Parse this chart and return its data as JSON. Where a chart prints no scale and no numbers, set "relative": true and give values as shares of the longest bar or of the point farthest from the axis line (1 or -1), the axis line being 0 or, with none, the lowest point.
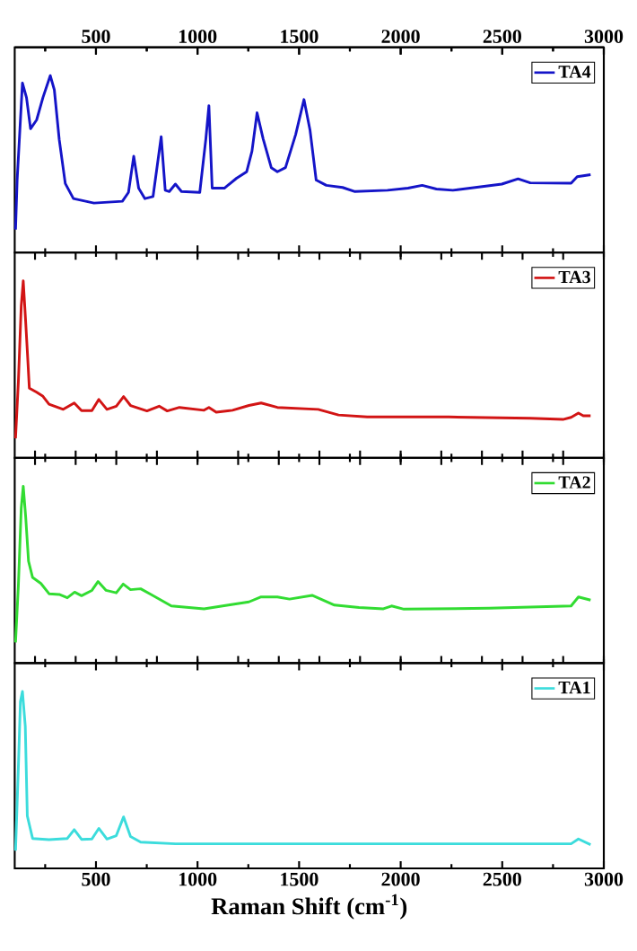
{
  "chart_data": [
    {
      "type": "line",
      "relative": true,
      "legend": "top right",
      "tick_labels": false,
      "xlim": [
        100,
        3000
      ],
      "xticks": [
        {
          "value": 250,
          "label": null
        },
        500,
        {
          "value": 750,
          "label": null
        },
        1000,
        {
          "value": 1250,
          "label": null
        },
        1500,
        {
          "value": 1750,
          "label": null
        },
        2000,
        {
          "value": 2250,
          "label": null
        },
        2500,
        {
          "value": 2750,
          "label": null
        },
        3000
      ],
      "x2lim": [
        100,
        3000
      ],
      "x2ticks": [
        {
          "value": 250,
          "label": null
        },
        500,
        {
          "value": 750,
          "label": null
        },
        1000,
        {
          "value": 1250,
          "label": null
        },
        1500,
        {
          "value": 1750,
          "label": null
        },
        2000,
        {
          "value": 2250,
          "label": null
        },
        2500,
        {
          "value": 2750,
          "label": null
        },
        3000
      ],
      "x": [
        104,
        112,
        138,
        158,
        178,
        208,
        239,
        275,
        295,
        319,
        349,
        389,
        490,
        630,
        660,
        686,
        710,
        741,
        781,
        821,
        841,
        861,
        891,
        921,
        1011,
        1041,
        1056,
        1072,
        1132,
        1192,
        1242,
        1268,
        1293,
        1323,
        1363,
        1393,
        1433,
        1483,
        1524,
        1554,
        1584,
        1634,
        1714,
        1775,
        1935,
        2036,
        2106,
        2176,
        2257,
        2498,
        2578,
        2638,
        2839,
        2869,
        2935
      ],
      "series": [
        {
          "name": "TA4",
          "color": "#1414c8",
          "values": [
            0.13,
            0.41,
            0.958,
            0.876,
            0.7,
            0.75,
            0.876,
            1.0,
            0.92,
            0.64,
            0.39,
            0.305,
            0.28,
            0.29,
            0.34,
            0.545,
            0.364,
            0.305,
            0.317,
            0.655,
            0.352,
            0.345,
            0.387,
            0.345,
            0.34,
            0.643,
            0.83,
            0.364,
            0.364,
            0.42,
            0.457,
            0.573,
            0.79,
            0.643,
            0.48,
            0.457,
            0.48,
            0.667,
            0.865,
            0.69,
            0.41,
            0.38,
            0.368,
            0.345,
            0.352,
            0.364,
            0.38,
            0.359,
            0.352,
            0.387,
            0.417,
            0.394,
            0.392,
            0.429,
            0.44
          ]
        }
      ]
    },
    {
      "type": "line",
      "relative": true,
      "legend": "top right",
      "tick_labels": false,
      "xlim": [
        100,
        3000
      ],
      "xticks": [
        {
          "value": 250,
          "label": null
        },
        {
          "value": 500,
          "label": null
        },
        {
          "value": 750,
          "label": null
        },
        {
          "value": 1000,
          "label": null
        },
        {
          "value": 1250,
          "label": null
        },
        {
          "value": 1500,
          "label": null
        },
        {
          "value": 1750,
          "label": null
        },
        {
          "value": 2000,
          "label": null
        },
        {
          "value": 2250,
          "label": null
        },
        {
          "value": 2500,
          "label": null
        },
        {
          "value": 2750,
          "label": null
        },
        {
          "value": 3000,
          "label": null
        }
      ],
      "x": [
        104,
        118,
        132,
        142,
        154,
        164,
        172,
        208,
        239,
        269,
        339,
        393,
        429,
        480,
        514,
        554,
        600,
        636,
        670,
        751,
        811,
        851,
        911,
        1032,
        1056,
        1092,
        1172,
        1253,
        1313,
        1393,
        1594,
        1694,
        1835,
        2237,
        2638,
        2799,
        2839,
        2875,
        2899,
        2935
      ],
      "series": [
        {
          "name": "TA3",
          "color": "#d21414",
          "values": [
            0.11,
            0.43,
            0.857,
            1.0,
            0.767,
            0.563,
            0.394,
            0.371,
            0.348,
            0.303,
            0.274,
            0.31,
            0.267,
            0.267,
            0.33,
            0.274,
            0.292,
            0.346,
            0.296,
            0.265,
            0.292,
            0.265,
            0.285,
            0.269,
            0.285,
            0.258,
            0.269,
            0.296,
            0.31,
            0.285,
            0.274,
            0.242,
            0.231,
            0.231,
            0.224,
            0.217,
            0.229,
            0.253,
            0.238,
            0.238
          ]
        }
      ]
    },
    {
      "type": "line",
      "relative": true,
      "legend": "top right",
      "tick_labels": false,
      "xlim": [
        100,
        3000
      ],
      "xticks": [
        {
          "value": 250,
          "label": null
        },
        {
          "value": 500,
          "label": null
        },
        {
          "value": 750,
          "label": null
        },
        {
          "value": 1000,
          "label": null
        },
        {
          "value": 1250,
          "label": null
        },
        {
          "value": 1500,
          "label": null
        },
        {
          "value": 1750,
          "label": null
        },
        {
          "value": 2000,
          "label": null
        },
        {
          "value": 2250,
          "label": null
        },
        {
          "value": 2500,
          "label": null
        },
        {
          "value": 2750,
          "label": null
        },
        {
          "value": 3000,
          "label": null
        }
      ],
      "x": [
        104,
        118,
        132,
        142,
        154,
        168,
        188,
        229,
        269,
        319,
        359,
        395,
        429,
        480,
        510,
        550,
        600,
        634,
        670,
        720,
        771,
        871,
        1032,
        1152,
        1253,
        1313,
        1393,
        1453,
        1564,
        1614,
        1674,
        1795,
        1915,
        1955,
        2016,
        2437,
        2839,
        2875,
        2935
      ],
      "series": [
        {
          "name": "TA2",
          "color": "#32dc32",
          "values": [
            0.117,
            0.438,
            0.874,
            1.0,
            0.828,
            0.576,
            0.484,
            0.45,
            0.392,
            0.388,
            0.369,
            0.401,
            0.381,
            0.411,
            0.461,
            0.411,
            0.397,
            0.447,
            0.415,
            0.42,
            0.388,
            0.323,
            0.307,
            0.328,
            0.346,
            0.374,
            0.374,
            0.362,
            0.383,
            0.358,
            0.328,
            0.314,
            0.307,
            0.323,
            0.305,
            0.31,
            0.323,
            0.374,
            0.356
          ]
        }
      ]
    },
    {
      "type": "line",
      "relative": true,
      "legend": "top right",
      "tick_labels": "x",
      "xlabel": "Raman Shift (cm$^{-1}$)",
      "xlim": [
        100,
        3000
      ],
      "xticks": [
        {
          "value": 250,
          "label": null
        },
        500,
        {
          "value": 750,
          "label": null
        },
        1000,
        {
          "value": 1250,
          "label": null
        },
        1500,
        {
          "value": 1750,
          "label": null
        },
        2000,
        {
          "value": 2250,
          "label": null
        },
        2500,
        {
          "value": 2750,
          "label": null
        },
        3000
      ],
      "x": [
        104,
        118,
        128,
        138,
        152,
        162,
        188,
        269,
        359,
        393,
        429,
        480,
        514,
        554,
        600,
        636,
        670,
        720,
        891,
        2839,
        2875,
        2935
      ],
      "series": [
        {
          "name": "TA1",
          "color": "#3cdcdc",
          "values": [
            0.1,
            0.573,
            0.942,
            1.0,
            0.804,
            0.296,
            0.169,
            0.162,
            0.169,
            0.219,
            0.164,
            0.166,
            0.226,
            0.166,
            0.185,
            0.291,
            0.18,
            0.148,
            0.139,
            0.139,
            0.166,
            0.134
          ]
        }
      ]
    }
  ]
}
